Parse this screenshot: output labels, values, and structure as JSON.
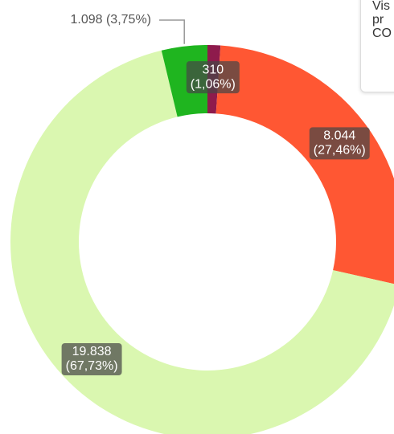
{
  "chart_data": {
    "type": "donut",
    "categories": [
      null,
      null,
      null,
      null
    ],
    "values": [
      310,
      8044,
      19838,
      1098
    ],
    "value_labels": [
      "310",
      "8.044",
      "19.838",
      "1.098"
    ],
    "percents": [
      1.06,
      27.46,
      67.73,
      3.75
    ],
    "percent_labels": [
      "(1,06%)",
      "(27,46%)",
      "(67,73%)",
      "(3,75%)"
    ],
    "colors": [
      "#8e1b4c",
      "#ff5733",
      "#daf7b0",
      "#1fb51f"
    ]
  },
  "tooltip": {
    "lines": [
      "Vis",
      "pr",
      "CO"
    ]
  }
}
